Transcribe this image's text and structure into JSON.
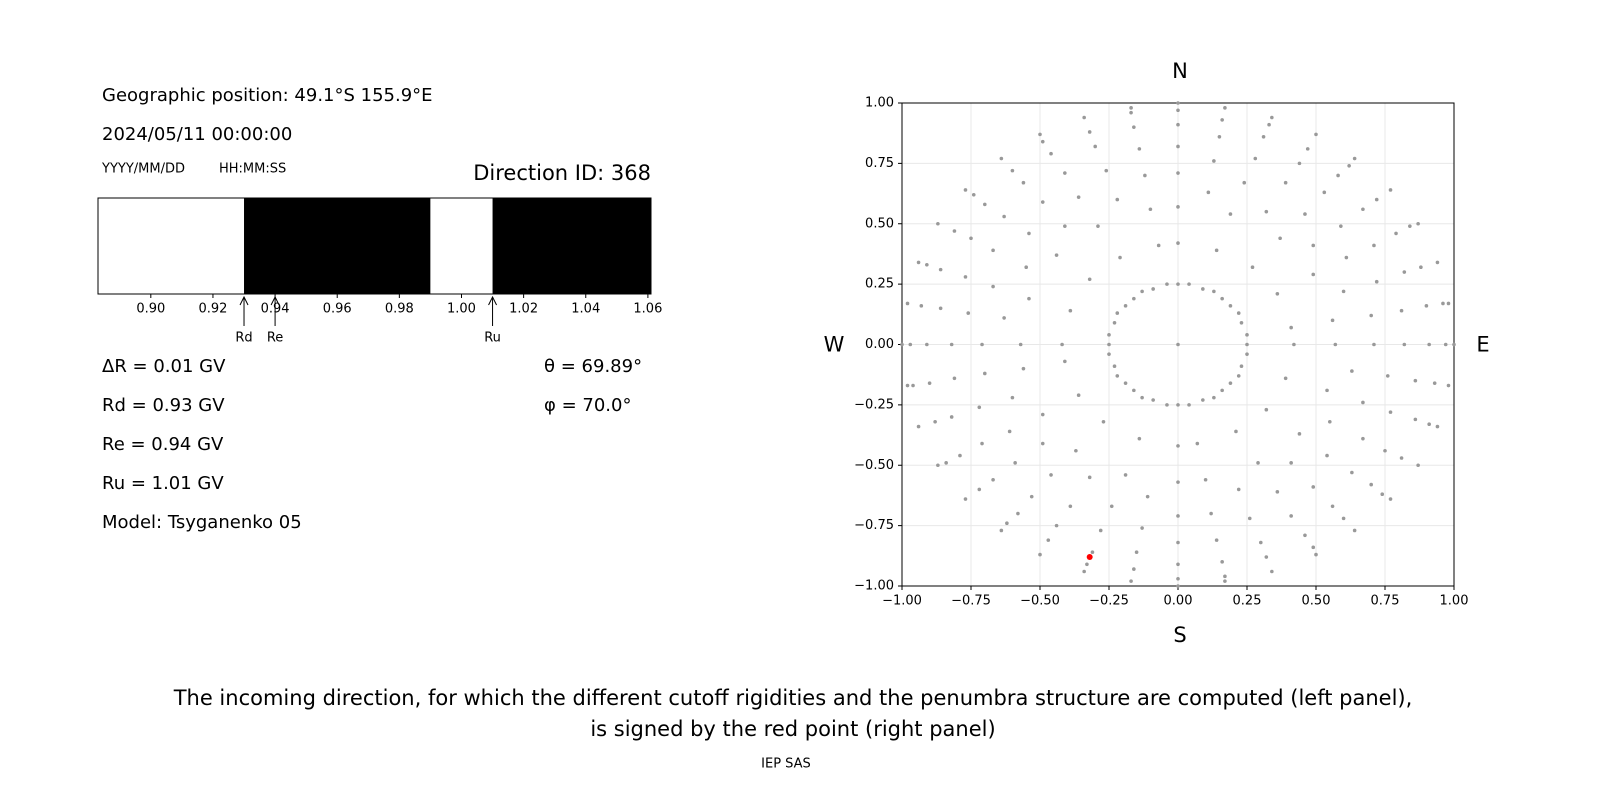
{
  "header": {
    "position": "Geographic position: 49.1°S 155.9°E",
    "datetime": "2024/05/11 00:00:00",
    "date_format": "YYYY/MM/DD",
    "time_format": "HH:MM:SS",
    "direction_id": "Direction ID: 368"
  },
  "parameters": [
    "ΔR = 0.01 GV",
    "Rd = 0.93 GV",
    "Re = 0.94 GV",
    "Ru = 1.01 GV",
    "Model: Tsyganenko 05"
  ],
  "angles": [
    "θ = 69.89°",
    "φ = 70.0°"
  ],
  "chart_data": [
    {
      "type": "penumbra",
      "bins": [
        0.883,
        0.93,
        0.99,
        1.01,
        1.061
      ],
      "colors": [
        "#ffffff",
        "#000000",
        "#ffffff",
        "#000000"
      ],
      "xlim": [
        0.883,
        1.061
      ],
      "xticks": [
        {
          "value": 0.9,
          "label": "0.90"
        },
        {
          "value": 0.92,
          "label": "0.92"
        },
        {
          "value": 0.94,
          "label": "0.94"
        },
        {
          "value": 0.96,
          "label": "0.96"
        },
        {
          "value": 0.98,
          "label": "0.98"
        },
        {
          "value": 1.0,
          "label": "1.00"
        },
        {
          "value": 1.02,
          "label": "1.02"
        },
        {
          "value": 1.04,
          "label": "1.04"
        },
        {
          "value": 1.06,
          "label": "1.06"
        }
      ],
      "markers": [
        {
          "label": "Rd",
          "value": 0.93
        },
        {
          "label": "Re",
          "value": 0.94
        },
        {
          "label": "Ru",
          "value": 1.01
        }
      ]
    },
    {
      "type": "scatter",
      "xlim": [
        -1,
        1
      ],
      "ylim": [
        -1,
        1
      ],
      "grid": true,
      "compass": {
        "north": "N",
        "south": "S",
        "west": "W",
        "east": "E"
      },
      "xticks": [
        {
          "value": -1,
          "label": "−1.00"
        },
        {
          "value": -0.75,
          "label": "−0.75"
        },
        {
          "value": -0.5,
          "label": "−0.50"
        },
        {
          "value": -0.25,
          "label": "−0.25"
        },
        {
          "value": 0,
          "label": "0.00"
        },
        {
          "value": 0.25,
          "label": "0.25"
        },
        {
          "value": 0.5,
          "label": "0.50"
        },
        {
          "value": 0.75,
          "label": "0.75"
        },
        {
          "value": 1,
          "label": "1.00"
        }
      ],
      "yticks": [
        {
          "value": -1,
          "label": "−1.00"
        },
        {
          "value": -0.75,
          "label": "−0.75"
        },
        {
          "value": -0.5,
          "label": "−0.50"
        },
        {
          "value": -0.25,
          "label": "−0.25"
        },
        {
          "value": 0,
          "label": "0.00"
        },
        {
          "value": 0.25,
          "label": "0.25"
        },
        {
          "value": 0.5,
          "label": "0.50"
        },
        {
          "value": 0.75,
          "label": "0.75"
        },
        {
          "value": 1,
          "label": "1.00"
        }
      ],
      "series": [
        {
          "color": "#999999",
          "x": [
            0,
            0.04,
            0.09,
            0.13,
            0.16,
            0.19,
            0.22,
            0.23,
            0.25,
            0,
            0,
            0,
            0,
            0,
            0,
            0,
            0.11,
            0.13,
            0.15,
            0.16,
            0.17,
            0.14,
            0.19,
            0.24,
            0.28,
            0.31,
            0.33,
            0.34,
            0.32,
            0.39,
            0.44,
            0.47,
            0.5,
            0.27,
            0.37,
            0.46,
            0.53,
            0.58,
            0.62,
            0.64,
            0.49,
            0.59,
            0.67,
            0.72,
            0.77,
            0.36,
            0.49,
            0.61,
            0.71,
            0.79,
            0.84,
            0.87,
            0.6,
            0.72,
            0.82,
            0.88,
            0.94,
            0.41,
            0.56,
            0.7,
            0.81,
            0.9,
            0.96,
            0.98,
            0.25,
            0.25,
            0.23,
            0.22,
            0.19,
            0.16,
            0.13,
            0.09,
            0.04,
            0.42,
            0.57,
            0.71,
            0.82,
            0.91,
            0.97,
            1,
            0.63,
            0.76,
            0.86,
            0.93,
            0.98,
            0.39,
            0.54,
            0.67,
            0.77,
            0.86,
            0.91,
            0.94,
            0.55,
            0.67,
            0.75,
            0.81,
            0.87,
            0.32,
            0.44,
            0.54,
            0.63,
            0.7,
            0.74,
            0.77,
            0.41,
            0.49,
            0.56,
            0.6,
            0.64,
            0.21,
            0.29,
            0.36,
            0.41,
            0.46,
            0.49,
            0.5,
            0.22,
            0.26,
            0.3,
            0.32,
            0.34,
            0.07,
            0.1,
            0.12,
            0.14,
            0.16,
            0.17,
            0.17,
            0,
            -0.04,
            -0.09,
            -0.13,
            -0.16,
            -0.19,
            -0.22,
            -0.23,
            -0.25,
            0,
            0,
            0,
            0,
            0,
            0,
            0,
            -0.11,
            -0.13,
            -0.15,
            -0.16,
            -0.17,
            -0.14,
            -0.19,
            -0.24,
            -0.28,
            -0.31,
            -0.33,
            -0.34,
            -0.32,
            -0.39,
            -0.44,
            -0.47,
            -0.5,
            -0.27,
            -0.37,
            -0.46,
            -0.53,
            -0.58,
            -0.62,
            -0.64,
            -0.49,
            -0.59,
            -0.67,
            -0.72,
            -0.77,
            -0.36,
            -0.49,
            -0.61,
            -0.71,
            -0.79,
            -0.84,
            -0.87,
            -0.6,
            -0.72,
            -0.82,
            -0.88,
            -0.94,
            -0.41,
            -0.56,
            -0.7,
            -0.81,
            -0.9,
            -0.96,
            -0.98,
            -0.25,
            -0.25,
            -0.23,
            -0.22,
            -0.19,
            -0.16,
            -0.13,
            -0.09,
            -0.04,
            -0.42,
            -0.57,
            -0.71,
            -0.82,
            -0.91,
            -0.97,
            -1,
            -0.63,
            -0.76,
            -0.86,
            -0.93,
            -0.98,
            -0.39,
            -0.54,
            -0.67,
            -0.77,
            -0.86,
            -0.91,
            -0.94,
            -0.55,
            -0.67,
            -0.75,
            -0.81,
            -0.87,
            -0.32,
            -0.44,
            -0.54,
            -0.63,
            -0.7,
            -0.74,
            -0.77,
            -0.41,
            -0.49,
            -0.56,
            -0.6,
            -0.64,
            -0.21,
            -0.29,
            -0.36,
            -0.41,
            -0.46,
            -0.49,
            -0.5,
            -0.22,
            -0.26,
            -0.3,
            -0.32,
            -0.34,
            -0.07,
            -0.1,
            -0.12,
            -0.14,
            -0.16,
            -0.17,
            -0.17,
            0
          ],
          "values": [
            0.25,
            0.25,
            0.23,
            0.22,
            0.19,
            0.16,
            0.13,
            0.09,
            0.04,
            0.42,
            0.57,
            0.71,
            0.82,
            0.91,
            0.97,
            1,
            0.63,
            0.76,
            0.86,
            0.93,
            0.98,
            0.39,
            0.54,
            0.67,
            0.77,
            0.86,
            0.91,
            0.94,
            0.55,
            0.67,
            0.75,
            0.81,
            0.87,
            0.32,
            0.44,
            0.54,
            0.63,
            0.7,
            0.74,
            0.77,
            0.41,
            0.49,
            0.56,
            0.6,
            0.64,
            0.21,
            0.29,
            0.36,
            0.41,
            0.46,
            0.49,
            0.5,
            0.22,
            0.26,
            0.3,
            0.32,
            0.34,
            0.07,
            0.1,
            0.12,
            0.14,
            0.16,
            0.17,
            0.17,
            0,
            -0.04,
            -0.09,
            -0.13,
            -0.16,
            -0.19,
            -0.22,
            -0.23,
            -0.25,
            0,
            0,
            0,
            0,
            0,
            0,
            0,
            -0.11,
            -0.13,
            -0.15,
            -0.16,
            -0.17,
            -0.14,
            -0.19,
            -0.24,
            -0.28,
            -0.31,
            -0.33,
            -0.34,
            -0.32,
            -0.39,
            -0.44,
            -0.47,
            -0.5,
            -0.27,
            -0.37,
            -0.46,
            -0.53,
            -0.58,
            -0.62,
            -0.64,
            -0.49,
            -0.59,
            -0.67,
            -0.72,
            -0.77,
            -0.36,
            -0.49,
            -0.61,
            -0.71,
            -0.79,
            -0.84,
            -0.87,
            -0.6,
            -0.72,
            -0.82,
            -0.88,
            -0.94,
            -0.41,
            -0.56,
            -0.7,
            -0.81,
            -0.9,
            -0.96,
            -0.98,
            -0.25,
            -0.25,
            -0.23,
            -0.22,
            -0.19,
            -0.16,
            -0.13,
            -0.09,
            -0.04,
            -0.42,
            -0.57,
            -0.71,
            -0.82,
            -0.91,
            -0.97,
            -1,
            -0.63,
            -0.76,
            -0.86,
            -0.93,
            -0.98,
            -0.39,
            -0.54,
            -0.67,
            -0.77,
            -0.86,
            -0.91,
            -0.94,
            -0.55,
            -0.67,
            -0.75,
            -0.81,
            -0.87,
            -0.32,
            -0.44,
            -0.54,
            -0.63,
            -0.7,
            -0.74,
            -0.77,
            -0.41,
            -0.49,
            -0.56,
            -0.6,
            -0.64,
            -0.21,
            -0.29,
            -0.36,
            -0.41,
            -0.46,
            -0.49,
            -0.5,
            -0.22,
            -0.26,
            -0.3,
            -0.32,
            -0.34,
            -0.07,
            -0.1,
            -0.12,
            -0.14,
            -0.16,
            -0.17,
            -0.17,
            0,
            0.04,
            0.09,
            0.13,
            0.16,
            0.19,
            0.22,
            0.23,
            0.25,
            0,
            0,
            0,
            0,
            0,
            0,
            0,
            0.11,
            0.13,
            0.15,
            0.16,
            0.17,
            0.14,
            0.19,
            0.24,
            0.28,
            0.31,
            0.33,
            0.34,
            0.32,
            0.39,
            0.44,
            0.47,
            0.5,
            0.27,
            0.37,
            0.46,
            0.53,
            0.58,
            0.62,
            0.64,
            0.49,
            0.59,
            0.67,
            0.72,
            0.77,
            0.36,
            0.49,
            0.61,
            0.71,
            0.79,
            0.84,
            0.87,
            0.6,
            0.72,
            0.82,
            0.88,
            0.94,
            0.41,
            0.56,
            0.7,
            0.81,
            0.9,
            0.96,
            0.98,
            0
          ]
        },
        {
          "color": "#ff0000",
          "x": [
            -0.32
          ],
          "values": [
            -0.88
          ]
        }
      ]
    }
  ],
  "caption": [
    "The incoming direction, for which the different cutoff rigidities and the penumbra structure are computed (left panel),",
    "is signed by the red point (right panel)"
  ],
  "footer": "IEP SAS"
}
